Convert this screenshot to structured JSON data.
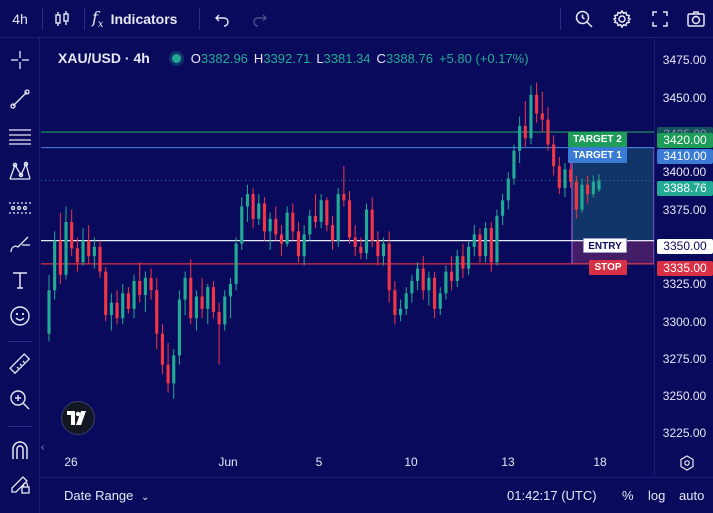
{
  "toolbar": {
    "interval": "4h",
    "indicators_label": "Indicators"
  },
  "legend": {
    "symbol": "XAU/USD · 4h",
    "open_label": "O",
    "open": "3382.96",
    "high_label": "H",
    "high": "3392.71",
    "low_label": "L",
    "low": "3381.34",
    "close_label": "C",
    "close": "3388.76",
    "change": "+5.80 (+0.17%)"
  },
  "price_axis": {
    "ticks": [
      "3475.00",
      "3450.00",
      "3425.00",
      "3400.00",
      "3375.00",
      "3325.00",
      "3300.00",
      "3275.00",
      "3250.00",
      "3225.00"
    ],
    "badges": {
      "target2": "3420.00",
      "target1": "3410.00",
      "last": "3388.76",
      "entry": "3350.00",
      "stop": "3335.00"
    }
  },
  "annotations": {
    "target2": "TARGET 2",
    "target1": "TARGET 1",
    "entry": "ENTRY",
    "stop": "STOP"
  },
  "time_axis": [
    "26",
    "Jun",
    "5",
    "10",
    "13",
    "18"
  ],
  "bottom": {
    "date_range": "Date Range",
    "clock": "01:42:17 (UTC)",
    "percent": "%",
    "log": "log",
    "auto": "auto"
  },
  "colors": {
    "background": "#0a0a5c",
    "up": "#22ab94",
    "down": "#f23645",
    "target2": "#1e9c5a",
    "target1": "#3a7bd5",
    "entry": "#e6e8f5",
    "stop": "#d93045"
  },
  "chart_data": {
    "type": "candlestick",
    "symbol": "XAU/USD",
    "interval": "4h",
    "ylim": [
      3215,
      3480
    ],
    "levels": {
      "target2": 3420,
      "target1": 3410,
      "entry": 3350,
      "stop": 3335,
      "last": 3388.76
    },
    "candles": [
      [
        3290,
        3328,
        3285,
        3318
      ],
      [
        3318,
        3356,
        3312,
        3350
      ],
      [
        3350,
        3368,
        3322,
        3328
      ],
      [
        3328,
        3372,
        3325,
        3362
      ],
      [
        3362,
        3370,
        3340,
        3345
      ],
      [
        3345,
        3352,
        3330,
        3336
      ],
      [
        3336,
        3358,
        3334,
        3350
      ],
      [
        3350,
        3360,
        3335,
        3340
      ],
      [
        3340,
        3352,
        3332,
        3346
      ],
      [
        3346,
        3350,
        3326,
        3330
      ],
      [
        3330,
        3333,
        3298,
        3302
      ],
      [
        3302,
        3316,
        3292,
        3310
      ],
      [
        3310,
        3318,
        3296,
        3300
      ],
      [
        3300,
        3322,
        3296,
        3316
      ],
      [
        3316,
        3320,
        3303,
        3306
      ],
      [
        3306,
        3328,
        3300,
        3324
      ],
      [
        3324,
        3336,
        3310,
        3315
      ],
      [
        3315,
        3330,
        3304,
        3326
      ],
      [
        3326,
        3332,
        3312,
        3318
      ],
      [
        3318,
        3326,
        3280,
        3290
      ],
      [
        3290,
        3296,
        3264,
        3270
      ],
      [
        3270,
        3284,
        3252,
        3258
      ],
      [
        3258,
        3280,
        3248,
        3276
      ],
      [
        3276,
        3318,
        3270,
        3312
      ],
      [
        3312,
        3330,
        3302,
        3326
      ],
      [
        3326,
        3338,
        3296,
        3300
      ],
      [
        3300,
        3318,
        3292,
        3314
      ],
      [
        3314,
        3326,
        3300,
        3306
      ],
      [
        3306,
        3322,
        3296,
        3320
      ],
      [
        3320,
        3324,
        3300,
        3304
      ],
      [
        3304,
        3310,
        3270,
        3296
      ],
      [
        3296,
        3318,
        3292,
        3314
      ],
      [
        3314,
        3326,
        3300,
        3322
      ],
      [
        3322,
        3352,
        3318,
        3348
      ],
      [
        3348,
        3378,
        3344,
        3372
      ],
      [
        3372,
        3386,
        3362,
        3380
      ],
      [
        3380,
        3384,
        3358,
        3364
      ],
      [
        3364,
        3380,
        3360,
        3374
      ],
      [
        3374,
        3378,
        3350,
        3356
      ],
      [
        3356,
        3368,
        3344,
        3364
      ],
      [
        3364,
        3372,
        3350,
        3354
      ],
      [
        3354,
        3360,
        3340,
        3348
      ],
      [
        3348,
        3372,
        3346,
        3368
      ],
      [
        3368,
        3374,
        3350,
        3356
      ],
      [
        3356,
        3362,
        3336,
        3340
      ],
      [
        3340,
        3360,
        3334,
        3354
      ],
      [
        3354,
        3370,
        3350,
        3366
      ],
      [
        3366,
        3380,
        3358,
        3362
      ],
      [
        3362,
        3380,
        3358,
        3376
      ],
      [
        3376,
        3378,
        3356,
        3360
      ],
      [
        3360,
        3366,
        3344,
        3350
      ],
      [
        3350,
        3384,
        3346,
        3380
      ],
      [
        3380,
        3398,
        3372,
        3376
      ],
      [
        3376,
        3382,
        3348,
        3352
      ],
      [
        3352,
        3360,
        3340,
        3346
      ],
      [
        3346,
        3352,
        3338,
        3342
      ],
      [
        3342,
        3374,
        3338,
        3370
      ],
      [
        3370,
        3378,
        3346,
        3350
      ],
      [
        3350,
        3356,
        3334,
        3340
      ],
      [
        3340,
        3352,
        3334,
        3348
      ],
      [
        3348,
        3356,
        3310,
        3318
      ],
      [
        3318,
        3324,
        3296,
        3302
      ],
      [
        3302,
        3312,
        3298,
        3306
      ],
      [
        3306,
        3320,
        3302,
        3316
      ],
      [
        3316,
        3328,
        3310,
        3324
      ],
      [
        3324,
        3336,
        3318,
        3332
      ],
      [
        3332,
        3340,
        3312,
        3318
      ],
      [
        3318,
        3330,
        3308,
        3326
      ],
      [
        3326,
        3330,
        3300,
        3306
      ],
      [
        3306,
        3320,
        3302,
        3316
      ],
      [
        3316,
        3334,
        3312,
        3330
      ],
      [
        3330,
        3340,
        3318,
        3324
      ],
      [
        3324,
        3344,
        3320,
        3340
      ],
      [
        3340,
        3348,
        3326,
        3332
      ],
      [
        3332,
        3350,
        3328,
        3346
      ],
      [
        3346,
        3360,
        3340,
        3354
      ],
      [
        3354,
        3358,
        3336,
        3340
      ],
      [
        3340,
        3362,
        3336,
        3358
      ],
      [
        3358,
        3362,
        3330,
        3336
      ],
      [
        3336,
        3370,
        3334,
        3366
      ],
      [
        3366,
        3380,
        3360,
        3376
      ],
      [
        3376,
        3394,
        3370,
        3390
      ],
      [
        3390,
        3412,
        3386,
        3408
      ],
      [
        3408,
        3430,
        3400,
        3424
      ],
      [
        3424,
        3440,
        3410,
        3416
      ],
      [
        3416,
        3450,
        3412,
        3444
      ],
      [
        3444,
        3452,
        3426,
        3432
      ],
      [
        3432,
        3446,
        3420,
        3428
      ],
      [
        3428,
        3436,
        3408,
        3412
      ],
      [
        3412,
        3418,
        3392,
        3398
      ],
      [
        3398,
        3404,
        3380,
        3384
      ],
      [
        3384,
        3400,
        3378,
        3396
      ],
      [
        3396,
        3402,
        3384,
        3388
      ],
      [
        3388,
        3392,
        3364,
        3370
      ],
      [
        3370,
        3390,
        3368,
        3386
      ],
      [
        3386,
        3392,
        3374,
        3380
      ],
      [
        3380,
        3392,
        3378,
        3388
      ],
      [
        3382.96,
        3392.71,
        3381.34,
        3388.76
      ]
    ]
  }
}
